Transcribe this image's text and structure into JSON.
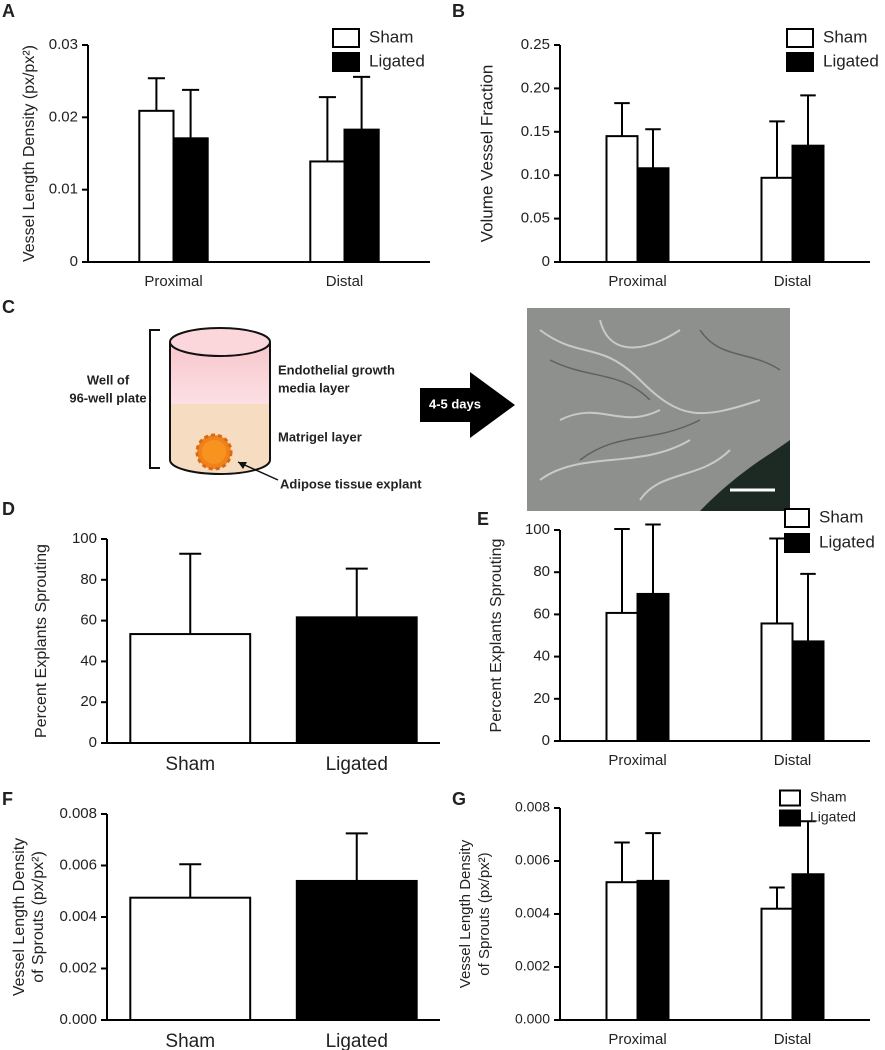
{
  "chart_data": [
    {
      "panel": "A",
      "type": "bar",
      "ylabel": [
        "Vessel Length Density (px/px²)"
      ],
      "categories": [
        "Proximal",
        "Distal"
      ],
      "series": [
        {
          "name": "Sham",
          "color": "#ffffff",
          "values": [
            0.0209,
            0.0139
          ],
          "errors": [
            0.0045,
            0.0089
          ]
        },
        {
          "name": "Ligated",
          "color": "#000000",
          "values": [
            0.0171,
            0.0183
          ],
          "errors": [
            0.0067,
            0.0073
          ]
        }
      ],
      "ylim": [
        0,
        0.03
      ],
      "yticks": [
        0,
        0.01,
        0.02,
        0.03
      ],
      "legend": "upper right"
    },
    {
      "panel": "B",
      "type": "bar",
      "ylabel": [
        "Volume Vessel Fraction"
      ],
      "categories": [
        "Proximal",
        "Distal"
      ],
      "series": [
        {
          "name": "Sham",
          "color": "#ffffff",
          "values": [
            0.145,
            0.097
          ],
          "errors": [
            0.038,
            0.065
          ]
        },
        {
          "name": "Ligated",
          "color": "#000000",
          "values": [
            0.108,
            0.134
          ],
          "errors": [
            0.045,
            0.058
          ]
        }
      ],
      "ylim": [
        0,
        0.25
      ],
      "yticks": [
        0,
        0.05,
        {
          "value": 0.1,
          "label": "0.10"
        },
        0.15,
        {
          "value": 0.2,
          "label": "0.20"
        },
        0.25
      ],
      "legend": "upper right"
    },
    {
      "panel": "D",
      "type": "bar",
      "ylabel": [
        "Percent Explants Sprouting"
      ],
      "categories": [
        "Sham",
        "Ligated"
      ],
      "values": [
        53.4,
        61.6
      ],
      "errors": [
        39.4,
        23.9
      ],
      "colors": [
        "#ffffff",
        "#000000"
      ],
      "ylim": [
        0,
        100
      ],
      "yticks": [
        0,
        20,
        40,
        60,
        80,
        100
      ]
    },
    {
      "panel": "E",
      "type": "bar",
      "ylabel": [
        "Percent Explants Sprouting"
      ],
      "categories": [
        "Proximal",
        "Distal"
      ],
      "series": [
        {
          "name": "Sham",
          "color": "#ffffff",
          "values": [
            60.7,
            55.7
          ],
          "errors": [
            39.8,
            40.3
          ]
        },
        {
          "name": "Ligated",
          "color": "#000000",
          "values": [
            69.7,
            47.2
          ],
          "errors": [
            32.9,
            32.0
          ]
        }
      ],
      "ylim": [
        0,
        100
      ],
      "yticks": [
        0,
        20,
        40,
        60,
        80,
        100
      ],
      "legend": "upper right"
    },
    {
      "panel": "F",
      "type": "bar",
      "ylabel": [
        "Vessel Length Density",
        "of Sprouts (px/px²)"
      ],
      "categories": [
        "Sham",
        "Ligated"
      ],
      "values": [
        0.00475,
        0.0054
      ],
      "errors": [
        0.0013,
        0.00185
      ],
      "colors": [
        "#ffffff",
        "#000000"
      ],
      "ylim": [
        0,
        0.008
      ],
      "yticks": [
        {
          "value": 0,
          "label": "0.000"
        },
        {
          "value": 0.002,
          "label": "0.002"
        },
        {
          "value": 0.004,
          "label": "0.004"
        },
        {
          "value": 0.006,
          "label": "0.006"
        },
        {
          "value": 0.008,
          "label": "0.008"
        }
      ]
    },
    {
      "panel": "G",
      "type": "bar",
      "ylabel": [
        "Vessel Length Density",
        "of Sprouts (px/px²)"
      ],
      "categories": [
        "Proximal",
        "Distal"
      ],
      "series": [
        {
          "name": "Sham",
          "color": "#ffffff",
          "values": [
            0.0052,
            0.0042
          ],
          "errors": [
            0.0015,
            0.0008
          ]
        },
        {
          "name": "Ligated",
          "color": "#000000",
          "values": [
            0.00525,
            0.0055
          ],
          "errors": [
            0.0018,
            0.002
          ]
        }
      ],
      "ylim": [
        0,
        0.008
      ],
      "yticks": [
        {
          "value": 0,
          "label": "0.000"
        },
        {
          "value": 0.002,
          "label": "0.002"
        },
        {
          "value": 0.004,
          "label": "0.004"
        },
        {
          "value": 0.006,
          "label": "0.006"
        },
        {
          "value": 0.008,
          "label": "0.008"
        }
      ],
      "legend": "upper right"
    }
  ],
  "diagram": {
    "panel": "C",
    "well_label": [
      "Well of",
      "96-well plate"
    ],
    "media_label": [
      "Endothelial growth",
      "media layer"
    ],
    "matrigel_label": "Matrigel layer",
    "explant_label": "Adipose tissue explant",
    "arrow_label": "4-5 days"
  }
}
